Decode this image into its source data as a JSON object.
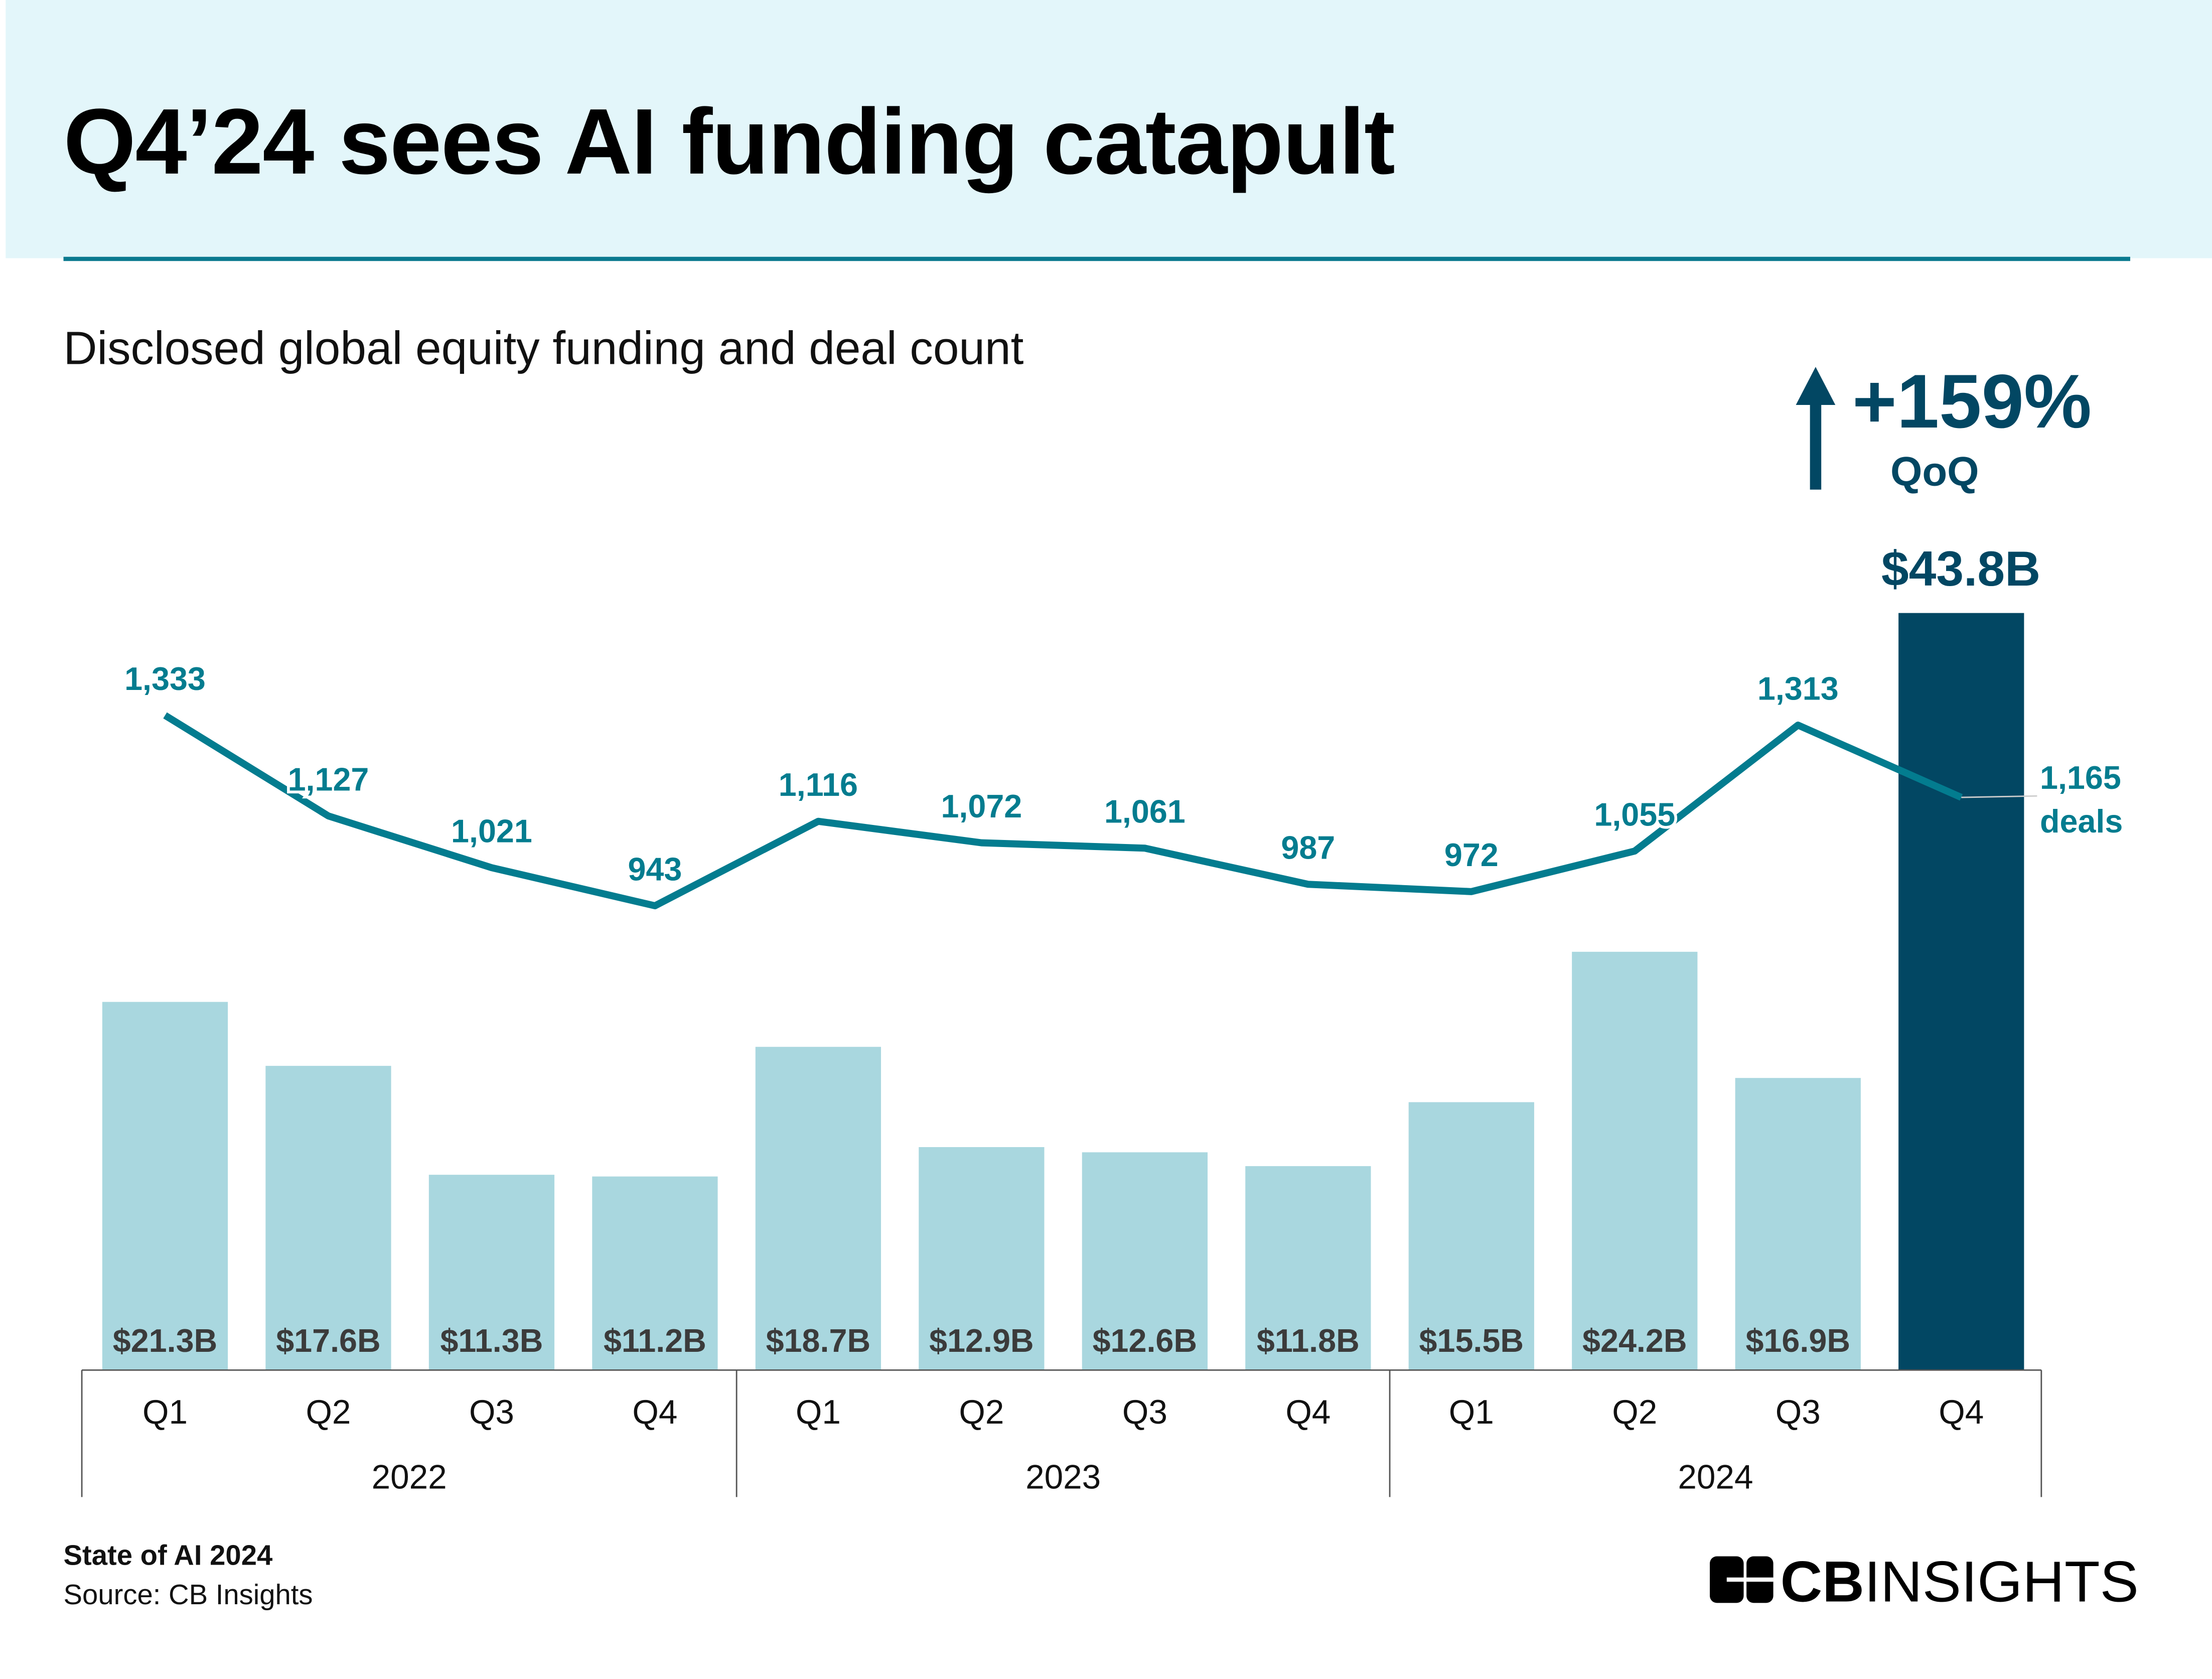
{
  "title": "Q4’24 sees AI funding catapult",
  "subtitle": "Disclosed global equity funding and deal count",
  "footer": {
    "report": "State of AI 2024",
    "source": "Source: CB Insights"
  },
  "logo": {
    "text": "CBINSIGHTS",
    "icon": "cb-insights-logo-icon"
  },
  "callout": {
    "change": "+159%",
    "period": "QoQ",
    "icon": "arrow-up-icon",
    "highlight_value": "$43.8B"
  },
  "colors": {
    "bar": "#a9d7df",
    "bar_highlight": "#024763",
    "line": "#037c8f",
    "header_bg": "#e3f6fa"
  },
  "chart_data": {
    "type": "bar",
    "categories": [
      "Q1",
      "Q2",
      "Q3",
      "Q4",
      "Q1",
      "Q2",
      "Q3",
      "Q4",
      "Q1",
      "Q2",
      "Q3",
      "Q4"
    ],
    "groups": [
      {
        "label": "2022",
        "span": 4
      },
      {
        "label": "2023",
        "span": 4
      },
      {
        "label": "2024",
        "span": 4
      }
    ],
    "series": [
      {
        "type": "bar",
        "unit": "$B",
        "values": [
          21.3,
          17.6,
          11.3,
          11.2,
          18.7,
          12.9,
          12.6,
          11.8,
          15.5,
          24.2,
          16.9,
          43.8
        ],
        "labels": [
          "$21.3B",
          "$17.6B",
          "$11.3B",
          "$11.2B",
          "$18.7B",
          "$12.9B",
          "$12.6B",
          "$11.8B",
          "$15.5B",
          "$24.2B",
          "$16.9B",
          "$43.8B"
        ]
      },
      {
        "type": "line",
        "values": [
          1333,
          1127,
          1021,
          943,
          1116,
          1072,
          1061,
          987,
          972,
          1055,
          1313,
          1165
        ],
        "labels": [
          "1,333",
          "1,127",
          "1,021",
          "943",
          "1,116",
          "1,072",
          "1,061",
          "987",
          "972",
          "1,055",
          "1,313",
          "1,165"
        ],
        "end_label": "deals"
      }
    ]
  }
}
